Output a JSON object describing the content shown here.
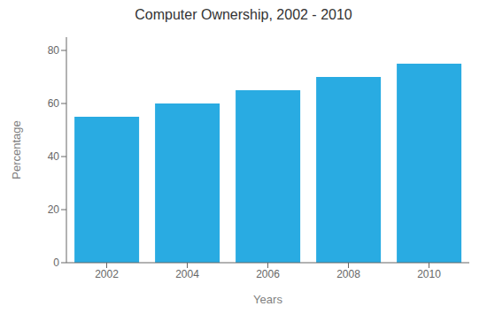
{
  "chart_data": {
    "type": "bar",
    "title": "Computer Ownership, 2002 - 2010",
    "xlabel": "Years",
    "ylabel": "Percentage",
    "categories": [
      "2002",
      "2004",
      "2006",
      "2008",
      "2010"
    ],
    "values": [
      55,
      60,
      65,
      70,
      75
    ],
    "color": "#29ABE2",
    "ylim": [
      0,
      85
    ],
    "yticks": [
      0,
      20,
      40,
      60,
      80
    ],
    "grid": false
  }
}
